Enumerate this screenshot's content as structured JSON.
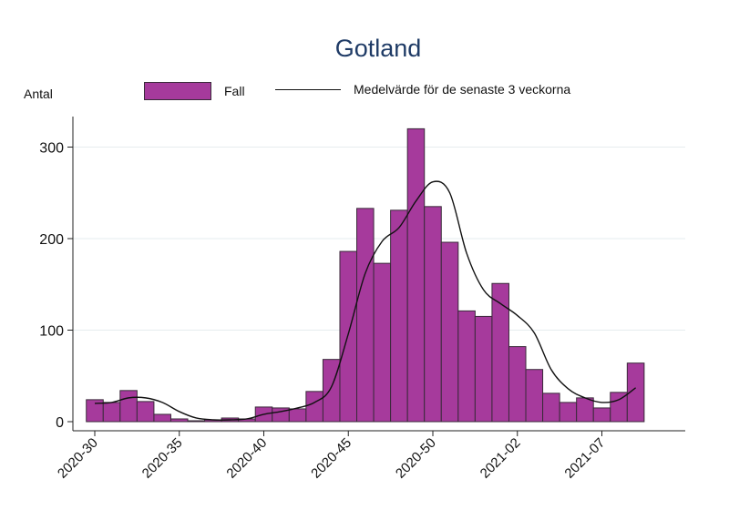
{
  "chart_data": {
    "type": "bar",
    "title": "Gotland",
    "ylabel": "Antal",
    "xlabel": "",
    "ylim": [
      0,
      330
    ],
    "yticks": [
      0,
      100,
      200,
      300
    ],
    "x_start_week": "2020-30",
    "xtick_labels": [
      "2020-30",
      "2020-35",
      "2020-40",
      "2020-45",
      "2020-50",
      "2021-02",
      "2021-07"
    ],
    "xtick_index": [
      0,
      5,
      10,
      15,
      20,
      25,
      30
    ],
    "grid": true,
    "legend": {
      "position": "top",
      "bar_label": "Fall",
      "line_label": "Medelvärde för de senaste 3 veckorna"
    },
    "series": [
      {
        "name": "Fall",
        "type": "bar",
        "color": "#a63a9c",
        "values": [
          24,
          21,
          34,
          22,
          8,
          3,
          1,
          2,
          4,
          3,
          16,
          15,
          14,
          33,
          68,
          186,
          233,
          173,
          231,
          320,
          235,
          196,
          121,
          115,
          151,
          82,
          57,
          31,
          21,
          26,
          15,
          32,
          64
        ]
      },
      {
        "name": "Medelvärde för de senaste 3 veckorna",
        "type": "line",
        "color": "#111111",
        "values": [
          20,
          21,
          26,
          26,
          21,
          11,
          4,
          2,
          2,
          3,
          8,
          11,
          15,
          21,
          38,
          96,
          162,
          197,
          212,
          241,
          262,
          250,
          184,
          144,
          129,
          116,
          97,
          57,
          36,
          26,
          21,
          24,
          37
        ]
      }
    ]
  }
}
